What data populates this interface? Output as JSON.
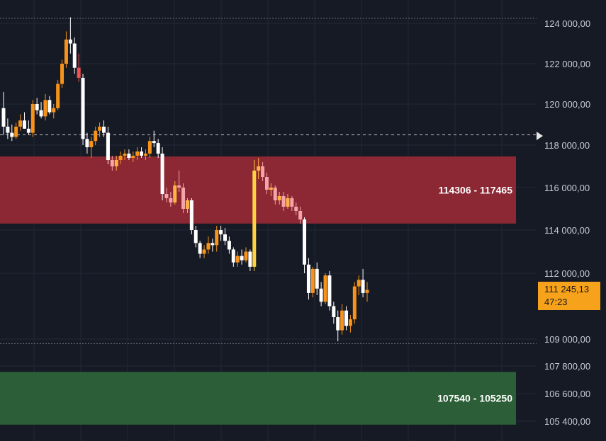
{
  "colors": {
    "background": "#161a25",
    "grid": "#232836",
    "resistance_zone": "#8b2834",
    "support_zone": "#2c5f37",
    "candle_up": "#f7931a",
    "candle_down": "#ffffff",
    "price_tag": "#f7a21b"
  },
  "chart_data": {
    "type": "candlestick",
    "y_ticks": [
      "124 000,00",
      "122 000,00",
      "120 000,00",
      "118 000,00",
      "116 000,00",
      "114 000,00",
      "112 000,00",
      "109 000,00",
      "107 800,00",
      "106 600,00",
      "105 400,00"
    ],
    "y_tick_values": [
      124000,
      122000,
      120000,
      118000,
      116000,
      114000,
      112000,
      109000,
      107800,
      106600,
      105400
    ],
    "zones": [
      {
        "label": "114306 - 117465",
        "low": 114306,
        "high": 117465,
        "color": "#8b2834"
      },
      {
        "label": "107540 - 105250",
        "low": 105250,
        "high": 107540,
        "color": "#2c5f37"
      }
    ],
    "dashed_level": 118500,
    "dotted_level": 124250,
    "dotted_level_low": 108800,
    "current_price": "111 245,13",
    "countdown": "47:23",
    "candles": [
      [
        119800,
        120600,
        118500,
        118900
      ],
      [
        118900,
        119300,
        118300,
        118600
      ],
      [
        118600,
        119000,
        118200,
        118400
      ],
      [
        118400,
        119100,
        118300,
        118900
      ],
      [
        118900,
        119500,
        118700,
        119200
      ],
      [
        119200,
        119600,
        118800,
        118800
      ],
      [
        118800,
        119200,
        118500,
        118600
      ],
      [
        118600,
        120200,
        118400,
        120000
      ],
      [
        120000,
        120300,
        119500,
        119700
      ],
      [
        119700,
        120100,
        119300,
        119400
      ],
      [
        119400,
        120500,
        119200,
        120200
      ],
      [
        120200,
        120400,
        119500,
        119600
      ],
      [
        119600,
        120000,
        119300,
        119800
      ],
      [
        119800,
        121200,
        119700,
        121000
      ],
      [
        121000,
        122200,
        120800,
        122000
      ],
      [
        122000,
        123600,
        121800,
        123200
      ],
      [
        123200,
        124300,
        122500,
        123000
      ],
      [
        123000,
        123300,
        121500,
        121800
      ],
      [
        121800,
        122500,
        121100,
        121300
      ],
      [
        121300,
        121500,
        118000,
        118300
      ],
      [
        118300,
        118600,
        117600,
        117900
      ],
      [
        117900,
        118400,
        117400,
        118200
      ],
      [
        118200,
        118900,
        118000,
        118700
      ],
      [
        118700,
        119100,
        118400,
        118900
      ],
      [
        118900,
        119200,
        118400,
        118600
      ],
      [
        118600,
        118900,
        117100,
        117300
      ],
      [
        117300,
        117500,
        116800,
        117000
      ],
      [
        117000,
        117500,
        116800,
        117300
      ],
      [
        117300,
        117700,
        117100,
        117500
      ],
      [
        117500,
        117800,
        117300,
        117600
      ],
      [
        117600,
        117800,
        117300,
        117400
      ],
      [
        117400,
        117700,
        117200,
        117500
      ],
      [
        117500,
        117900,
        117300,
        117700
      ],
      [
        117700,
        117900,
        117400,
        117500
      ],
      [
        117500,
        117800,
        117300,
        117600
      ],
      [
        117600,
        118400,
        117400,
        118200
      ],
      [
        118200,
        118700,
        117900,
        118100
      ],
      [
        118100,
        118300,
        117400,
        117600
      ],
      [
        117600,
        117900,
        115400,
        115700
      ],
      [
        115700,
        116000,
        115300,
        115500
      ],
      [
        115500,
        115800,
        115100,
        115300
      ],
      [
        115300,
        116300,
        115200,
        116100
      ],
      [
        116100,
        116800,
        115800,
        116000
      ],
      [
        116000,
        116200,
        114800,
        115000
      ],
      [
        115000,
        115500,
        114800,
        115400
      ],
      [
        115400,
        115500,
        113800,
        114000
      ],
      [
        114000,
        114200,
        113200,
        113400
      ],
      [
        113400,
        113500,
        112700,
        112900
      ],
      [
        112900,
        113300,
        112700,
        113100
      ],
      [
        113100,
        113700,
        112900,
        113400
      ],
      [
        113400,
        113600,
        113000,
        113300
      ],
      [
        113300,
        114200,
        113000,
        114000
      ],
      [
        114000,
        114200,
        113500,
        113800
      ],
      [
        113800,
        114100,
        113300,
        113500
      ],
      [
        113500,
        113700,
        112900,
        113100
      ],
      [
        113100,
        113200,
        112300,
        112500
      ],
      [
        112500,
        113000,
        112300,
        112800
      ],
      [
        112800,
        113100,
        112400,
        112600
      ],
      [
        112600,
        113200,
        112500,
        113000
      ],
      [
        113000,
        113100,
        112100,
        112300
      ],
      [
        112300,
        117300,
        112100,
        116800
      ],
      [
        116800,
        117400,
        116400,
        117000
      ],
      [
        117000,
        117200,
        116300,
        116500
      ],
      [
        116500,
        116700,
        115700,
        115900
      ],
      [
        115900,
        116200,
        115600,
        116000
      ],
      [
        116000,
        116100,
        115200,
        115400
      ],
      [
        115400,
        115800,
        115200,
        115600
      ],
      [
        115600,
        115800,
        114900,
        115100
      ],
      [
        115100,
        115700,
        115000,
        115500
      ],
      [
        115500,
        115600,
        114900,
        115100
      ],
      [
        115100,
        115300,
        114700,
        114900
      ],
      [
        114900,
        115100,
        114300,
        114500
      ],
      [
        114500,
        114600,
        112000,
        112400
      ],
      [
        112400,
        112700,
        110800,
        111100
      ],
      [
        111100,
        112300,
        110900,
        112200
      ],
      [
        112200,
        112500,
        111000,
        111300
      ],
      [
        111300,
        111600,
        110500,
        110700
      ],
      [
        110700,
        112000,
        110600,
        111900
      ],
      [
        111900,
        112100,
        110300,
        110500
      ],
      [
        110500,
        110700,
        109700,
        110000
      ],
      [
        110000,
        110300,
        108900,
        109400
      ],
      [
        109400,
        110600,
        109200,
        110300
      ],
      [
        110300,
        110500,
        109400,
        109600
      ],
      [
        109600,
        110100,
        109300,
        109900
      ],
      [
        109900,
        111600,
        109700,
        111400
      ],
      [
        111400,
        111900,
        111000,
        111700
      ],
      [
        111700,
        112200,
        110900,
        111100
      ],
      [
        111100,
        111600,
        110700,
        111245
      ]
    ]
  }
}
